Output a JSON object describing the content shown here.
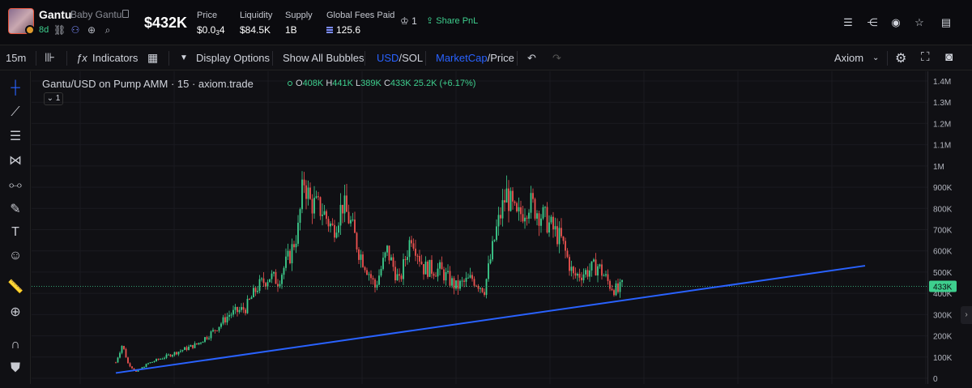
{
  "header": {
    "token_name": "Gantu",
    "token_sub": "Baby Gantu",
    "age": "8d",
    "market_cap": "$432K",
    "stats": [
      {
        "label": "Price",
        "value": "$0.0",
        "sub": "3",
        "tail": "4"
      },
      {
        "label": "Liquidity",
        "value": "$84.5K"
      },
      {
        "label": "Supply",
        "value": "1B"
      },
      {
        "label": "Global Fees Paid",
        "value": "125.6"
      }
    ],
    "crown_count": "1",
    "share_label": "Share PnL"
  },
  "toolbar": {
    "interval": "15m",
    "indicators": "Indicators",
    "display_options": "Display Options",
    "bubbles": "Show All Bubbles",
    "usd": "USD",
    "sol": "/SOL",
    "mcap": "MarketCap",
    "price": "/Price",
    "provider": "Axiom"
  },
  "legend": {
    "title": "Gantu/USD on Pump AMM · 15 · axiom.trade",
    "o_label": "O",
    "o": "408K",
    "h_label": "H",
    "h": "441K",
    "l_label": "L",
    "l": "389K",
    "c_label": "C",
    "c": "433K",
    "change": "25.2K (+6.17%)",
    "collapse_count": "1"
  },
  "colors": {
    "up": "#3ecf8e",
    "down": "#ef5350",
    "trendline": "#2962ff",
    "last_price_bg": "#3ecf8e"
  },
  "chart_data": {
    "type": "candlestick",
    "y_axis_labels": [
      "1.4M",
      "1.3M",
      "1.2M",
      "1.1M",
      "1M",
      "900K",
      "800K",
      "700K",
      "600K",
      "500K",
      "400K",
      "300K",
      "200K",
      "100K",
      "0"
    ],
    "ylim": [
      0,
      1400000
    ],
    "last_price_label": "433K",
    "close_path": [
      [
        0,
        75000
      ],
      [
        8,
        160000
      ],
      [
        15,
        70000
      ],
      [
        25,
        30000
      ],
      [
        40,
        70000
      ],
      [
        60,
        100000
      ],
      [
        80,
        130000
      ],
      [
        100,
        160000
      ],
      [
        120,
        220000
      ],
      [
        140,
        300000
      ],
      [
        160,
        330000
      ],
      [
        175,
        430000
      ],
      [
        190,
        480000
      ],
      [
        200,
        460000
      ],
      [
        215,
        580000
      ],
      [
        225,
        700000
      ],
      [
        232,
        940000
      ],
      [
        240,
        830000
      ],
      [
        255,
        790000
      ],
      [
        268,
        700000
      ],
      [
        280,
        820000
      ],
      [
        290,
        730000
      ],
      [
        300,
        600000
      ],
      [
        310,
        520000
      ],
      [
        320,
        430000
      ],
      [
        335,
        600000
      ],
      [
        350,
        450000
      ],
      [
        365,
        680000
      ],
      [
        380,
        520000
      ],
      [
        400,
        510000
      ],
      [
        420,
        430000
      ],
      [
        440,
        470000
      ],
      [
        455,
        420000
      ],
      [
        470,
        700000
      ],
      [
        482,
        870000
      ],
      [
        495,
        750000
      ],
      [
        510,
        830000
      ],
      [
        530,
        750000
      ],
      [
        550,
        650000
      ],
      [
        565,
        480000
      ],
      [
        580,
        500000
      ],
      [
        595,
        530000
      ],
      [
        610,
        440000
      ],
      [
        620,
        408000
      ],
      [
        625,
        433000
      ]
    ],
    "trendline": [
      [
        0,
        25000
      ],
      [
        925,
        530000
      ]
    ],
    "grid": true,
    "crosshair_price": 433000
  }
}
